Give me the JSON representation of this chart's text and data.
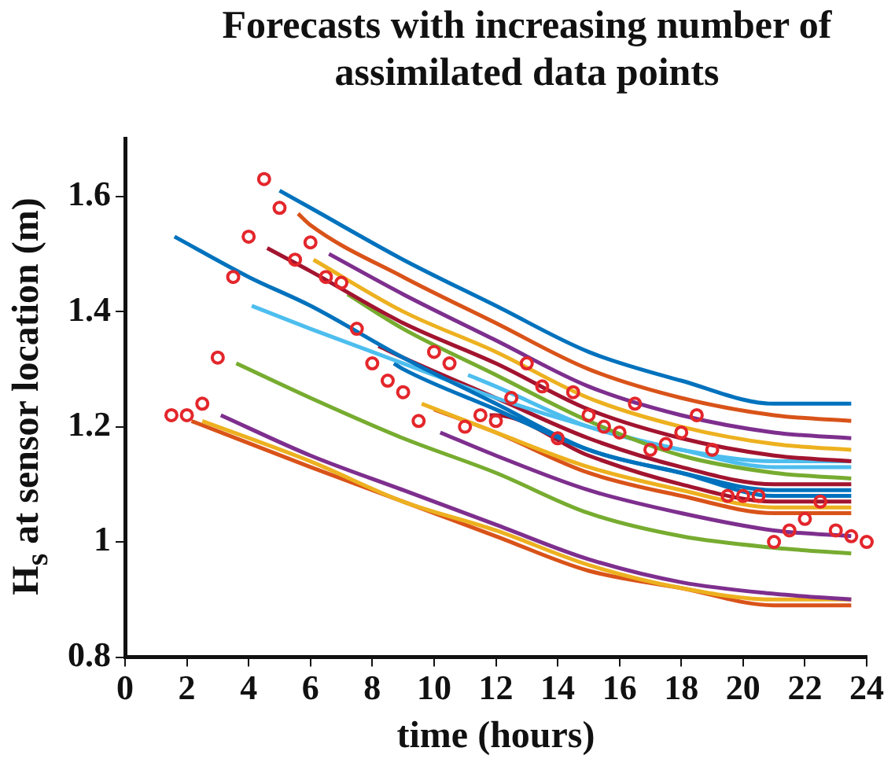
{
  "chart_data": {
    "type": "line",
    "title": "Forecasts with increasing number of assimilated data points",
    "xlabel": "time (hours)",
    "ylabel": "H$_{s}$ at sensor location (m)",
    "xlim": [
      0,
      24
    ],
    "xticks": [
      0,
      2,
      4,
      6,
      8,
      10,
      12,
      14,
      16,
      18,
      20,
      22,
      24
    ],
    "ylim": [
      0.8,
      1.7
    ],
    "yticks": [
      0.8,
      1,
      1.2,
      1.4,
      1.6
    ],
    "grid": false,
    "legend": false,
    "line_style": "solid",
    "series": [
      {
        "color": "#0072bd",
        "x": [
          5,
          6,
          9,
          12,
          15,
          18,
          21,
          23.5
        ],
        "values": [
          1.61,
          1.58,
          1.49,
          1.41,
          1.33,
          1.28,
          1.24,
          1.24
        ]
      },
      {
        "color": "#d95319",
        "x": [
          5.6,
          6,
          9,
          12,
          15,
          18,
          21,
          23.5
        ],
        "values": [
          1.57,
          1.55,
          1.46,
          1.38,
          1.3,
          1.25,
          1.22,
          1.21
        ]
      },
      {
        "color": "#7e2f8e",
        "x": [
          6.6,
          9,
          12,
          15,
          18,
          21,
          23.5
        ],
        "values": [
          1.5,
          1.43,
          1.35,
          1.27,
          1.22,
          1.19,
          1.18
        ]
      },
      {
        "color": "#edb120",
        "x": [
          6.1,
          9,
          12,
          15,
          18,
          21,
          23.5
        ],
        "values": [
          1.49,
          1.4,
          1.33,
          1.25,
          1.2,
          1.17,
          1.16
        ]
      },
      {
        "color": "#a2142f",
        "x": [
          4.6,
          6,
          9,
          12,
          15,
          18,
          21,
          23.5
        ],
        "values": [
          1.51,
          1.47,
          1.38,
          1.31,
          1.23,
          1.18,
          1.15,
          1.14
        ]
      },
      {
        "color": "#77ac30",
        "x": [
          7.2,
          9,
          12,
          15,
          18,
          21,
          23.5
        ],
        "values": [
          1.43,
          1.37,
          1.29,
          1.21,
          1.15,
          1.12,
          1.11
        ]
      },
      {
        "color": "#0072bd",
        "x": [
          1.6,
          4,
          6,
          9,
          12,
          15,
          18,
          21,
          23.5
        ],
        "values": [
          1.53,
          1.46,
          1.41,
          1.32,
          1.24,
          1.16,
          1.12,
          1.08,
          1.08
        ]
      },
      {
        "color": "#4dbeee",
        "x": [
          4.1,
          6,
          9,
          12,
          15,
          18,
          21,
          23.5
        ],
        "values": [
          1.41,
          1.37,
          1.31,
          1.25,
          1.2,
          1.16,
          1.14,
          1.14
        ]
      },
      {
        "color": "#4dbeee",
        "x": [
          11.1,
          12,
          15,
          18,
          21,
          23.5
        ],
        "values": [
          1.29,
          1.27,
          1.2,
          1.16,
          1.13,
          1.13
        ]
      },
      {
        "color": "#a2142f",
        "x": [
          8.2,
          9,
          12,
          15,
          18,
          21,
          23.5
        ],
        "values": [
          1.34,
          1.32,
          1.25,
          1.18,
          1.13,
          1.1,
          1.1
        ]
      },
      {
        "color": "#0072bd",
        "x": [
          8.7,
          9,
          12,
          15,
          18,
          21,
          23.5
        ],
        "values": [
          1.31,
          1.3,
          1.23,
          1.16,
          1.12,
          1.09,
          1.09
        ]
      },
      {
        "color": "#a2142f",
        "x": [
          11.8,
          12,
          15,
          18,
          21,
          23.5
        ],
        "values": [
          1.22,
          1.22,
          1.15,
          1.1,
          1.07,
          1.07
        ]
      },
      {
        "color": "#edb120",
        "x": [
          9.6,
          12,
          15,
          18,
          21,
          23.5
        ],
        "values": [
          1.24,
          1.19,
          1.13,
          1.09,
          1.06,
          1.06
        ]
      },
      {
        "color": "#d95319",
        "x": [
          10,
          12,
          15,
          18,
          21,
          23.5
        ],
        "values": [
          1.23,
          1.19,
          1.12,
          1.08,
          1.05,
          1.05
        ]
      },
      {
        "color": "#7e2f8e",
        "x": [
          10.2,
          12,
          15,
          18,
          21,
          23.5
        ],
        "values": [
          1.19,
          1.15,
          1.09,
          1.05,
          1.02,
          1.01
        ]
      },
      {
        "color": "#77ac30",
        "x": [
          3.6,
          6,
          9,
          12,
          15,
          18,
          21,
          23.5
        ],
        "values": [
          1.31,
          1.25,
          1.18,
          1.12,
          1.05,
          1.01,
          0.99,
          0.98
        ]
      },
      {
        "color": "#7e2f8e",
        "x": [
          3.1,
          6,
          9,
          12,
          15,
          18,
          21,
          23.5
        ],
        "values": [
          1.22,
          1.15,
          1.09,
          1.03,
          0.97,
          0.93,
          0.91,
          0.9
        ]
      },
      {
        "color": "#edb120",
        "x": [
          2.5,
          6,
          9,
          12,
          15,
          18,
          21,
          23.5
        ],
        "values": [
          1.21,
          1.14,
          1.07,
          1.02,
          0.96,
          0.92,
          0.9,
          0.9
        ]
      },
      {
        "color": "#d95319",
        "x": [
          2.15,
          6,
          9,
          12,
          15,
          18,
          21,
          23.5
        ],
        "values": [
          1.21,
          1.13,
          1.07,
          1.01,
          0.95,
          0.92,
          0.89,
          0.89
        ]
      },
      {
        "type": "scatter",
        "color": "#e3262b",
        "marker": "circle",
        "x": [
          1.5,
          2,
          2.5,
          3,
          3.5,
          4,
          4.5,
          5,
          5.5,
          6,
          6.5,
          7,
          7.5,
          8,
          8.5,
          9,
          9.5,
          10,
          10.5,
          11,
          11.5,
          12,
          12.5,
          13,
          13.5,
          14,
          14.5,
          15,
          15.5,
          16,
          16.5,
          17,
          17.5,
          18,
          18.5,
          19,
          19.5,
          20,
          20.5,
          21,
          21.5,
          22,
          22.5,
          23,
          23.5,
          24
        ],
        "values": [
          1.22,
          1.22,
          1.24,
          1.32,
          1.46,
          1.53,
          1.63,
          1.58,
          1.49,
          1.52,
          1.46,
          1.45,
          1.37,
          1.31,
          1.28,
          1.26,
          1.21,
          1.33,
          1.31,
          1.2,
          1.22,
          1.21,
          1.25,
          1.31,
          1.27,
          1.18,
          1.26,
          1.22,
          1.2,
          1.19,
          1.24,
          1.16,
          1.17,
          1.19,
          1.22,
          1.16,
          1.08,
          1.08,
          1.08,
          1.0,
          1.02,
          1.04,
          1.07,
          1.02,
          1.01,
          1.0
        ]
      }
    ]
  }
}
